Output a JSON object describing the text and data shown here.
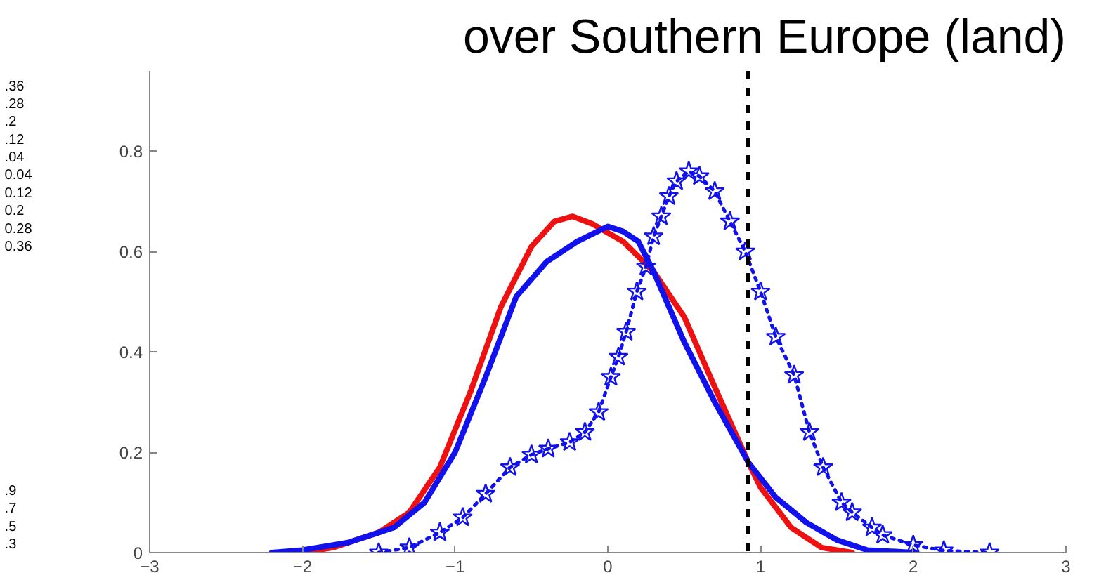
{
  "chart_data": {
    "type": "line",
    "title": "over Southern Europe (land)",
    "xlim": [
      -3,
      3
    ],
    "xticks": [
      -3,
      -2,
      -1,
      0,
      1,
      2,
      3
    ],
    "ylim": [
      0,
      0.96
    ],
    "yticks": [
      0,
      0.2,
      0.4,
      0.6,
      0.8
    ],
    "grid": false,
    "series": [
      {
        "color": "#ee1111",
        "line_style": "solid",
        "marker": "none",
        "x": [
          -2.0,
          -1.8,
          -1.5,
          -1.3,
          -1.1,
          -0.9,
          -0.7,
          -0.5,
          -0.35,
          -0.23,
          -0.1,
          0.1,
          0.3,
          0.5,
          0.7,
          0.92,
          1.0,
          1.2,
          1.4,
          1.6
        ],
        "values": [
          0,
          0.01,
          0.04,
          0.08,
          0.17,
          0.32,
          0.49,
          0.61,
          0.66,
          0.67,
          0.655,
          0.62,
          0.56,
          0.47,
          0.33,
          0.18,
          0.13,
          0.05,
          0.01,
          0
        ]
      },
      {
        "color": "#1111ee",
        "line_style": "solid",
        "marker": "none",
        "x": [
          -2.2,
          -2.0,
          -1.7,
          -1.4,
          -1.2,
          -1.0,
          -0.8,
          -0.6,
          -0.4,
          -0.2,
          0.0,
          0.1,
          0.2,
          0.3,
          0.5,
          0.7,
          0.92,
          1.1,
          1.3,
          1.5,
          1.7,
          2.0
        ],
        "values": [
          0,
          0.005,
          0.02,
          0.05,
          0.1,
          0.2,
          0.35,
          0.51,
          0.58,
          0.62,
          0.65,
          0.64,
          0.62,
          0.56,
          0.42,
          0.3,
          0.18,
          0.11,
          0.06,
          0.025,
          0.005,
          0
        ]
      },
      {
        "color": "#1111ee",
        "line_style": "dotted",
        "marker": "star",
        "x": [
          -1.5,
          -1.3,
          -1.1,
          -0.95,
          -0.8,
          -0.64,
          -0.5,
          -0.39,
          -0.25,
          -0.15,
          -0.06,
          0.02,
          0.07,
          0.12,
          0.19,
          0.25,
          0.3,
          0.35,
          0.4,
          0.45,
          0.53,
          0.6,
          0.7,
          0.8,
          0.9,
          1.0,
          1.1,
          1.22,
          1.32,
          1.41,
          1.53,
          1.6,
          1.73,
          1.8,
          2.0,
          2.2,
          2.5
        ],
        "values": [
          0,
          0.01,
          0.04,
          0.07,
          0.117,
          0.17,
          0.195,
          0.207,
          0.22,
          0.24,
          0.28,
          0.35,
          0.39,
          0.44,
          0.52,
          0.57,
          0.63,
          0.67,
          0.71,
          0.74,
          0.76,
          0.75,
          0.72,
          0.66,
          0.6,
          0.52,
          0.43,
          0.354,
          0.24,
          0.17,
          0.1,
          0.08,
          0.05,
          0.035,
          0.015,
          0.004,
          0
        ]
      }
    ],
    "ref_lines": [
      {
        "axis": "x",
        "value": 0.92,
        "color": "#000000",
        "line_style": "dashed"
      }
    ],
    "annotations": [
      ".36",
      ".28",
      ".2",
      ".12",
      ".04",
      "0.04",
      "0.12",
      "0.2",
      "0.28",
      "0.36",
      ".9",
      ".7",
      ".5",
      ".3"
    ]
  }
}
